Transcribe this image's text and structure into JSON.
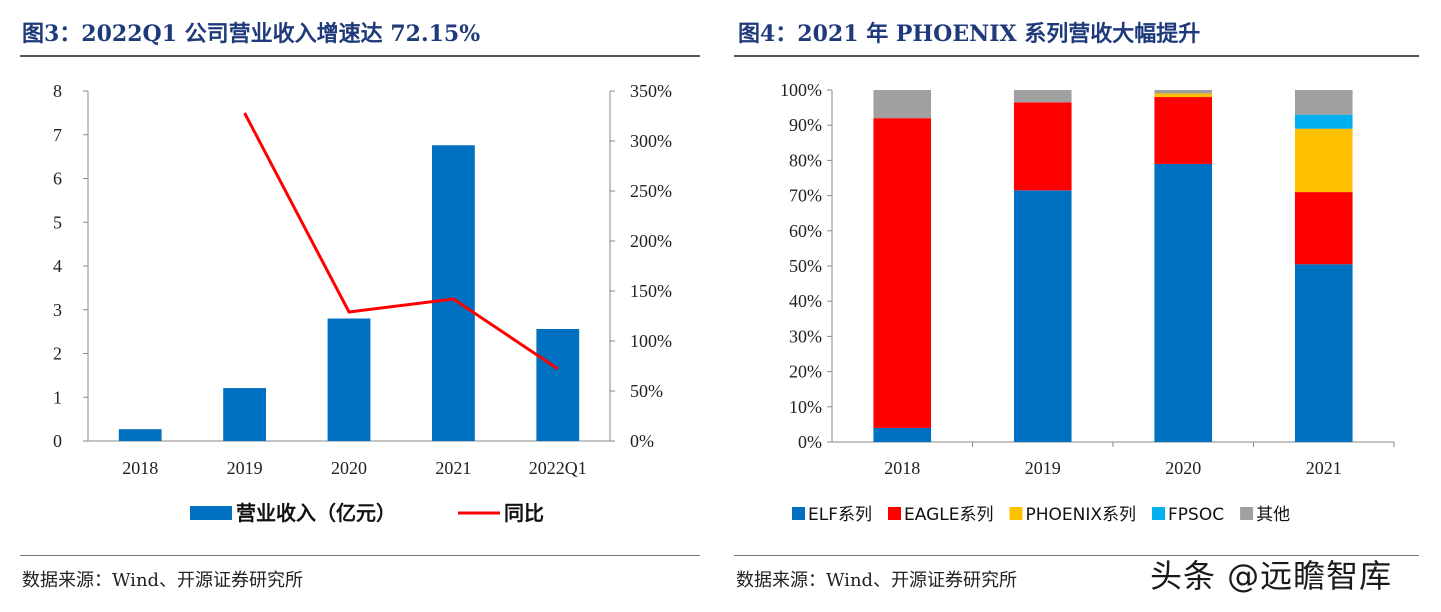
{
  "left": {
    "title": "图3：2022Q1 公司营业收入增速达 72.15%",
    "source": "数据来源：Wind、开源证券研究所",
    "chart_data": {
      "type": "bar",
      "categories": [
        "2018",
        "2019",
        "2020",
        "2021",
        "2022Q1"
      ],
      "series": [
        {
          "name": "营业收入（亿元）",
          "type": "bar",
          "axis": "left",
          "color": "#0070C0",
          "values": [
            0.27,
            1.21,
            2.8,
            6.76,
            2.56
          ]
        },
        {
          "name": "同比",
          "type": "line",
          "axis": "right",
          "color": "#FF0000",
          "values": [
            null,
            328,
            129,
            142,
            72.15
          ]
        }
      ],
      "y_left": {
        "range": [
          0,
          8
        ],
        "ticks": [
          "0",
          "1",
          "2",
          "3",
          "4",
          "5",
          "6",
          "7",
          "8"
        ]
      },
      "y_right": {
        "range": [
          0,
          350
        ],
        "ticks": [
          "0%",
          "50%",
          "100%",
          "150%",
          "200%",
          "250%",
          "300%",
          "350%"
        ]
      },
      "grid": false,
      "legend_position": "bottom"
    }
  },
  "right": {
    "title": "图4：2021 年 PHOENIX 系列营收大幅提升",
    "source": "数据来源：Wind、开源证券研究所",
    "chart_data": {
      "type": "bar",
      "stacked": true,
      "categories": [
        "2018",
        "2019",
        "2020",
        "2021"
      ],
      "series": [
        {
          "name": "ELF系列",
          "color": "#0070C0",
          "values": [
            4,
            71.5,
            79,
            50.5
          ]
        },
        {
          "name": "EAGLE系列",
          "color": "#FF0000",
          "values": [
            88,
            25,
            19,
            20.5
          ]
        },
        {
          "name": "PHOENIX系列",
          "color": "#FFC000",
          "values": [
            0,
            0,
            1,
            18
          ]
        },
        {
          "name": "FPSOC",
          "color": "#00B0F0",
          "values": [
            0,
            0,
            0,
            4
          ]
        },
        {
          "name": "其他",
          "color": "#A0A0A0",
          "values": [
            8,
            3.5,
            1,
            7
          ]
        }
      ],
      "y": {
        "range": [
          0,
          100
        ],
        "ticks": [
          "0%",
          "10%",
          "20%",
          "30%",
          "40%",
          "50%",
          "60%",
          "70%",
          "80%",
          "90%",
          "100%"
        ]
      },
      "grid": false,
      "legend_position": "bottom"
    }
  },
  "watermark": "头条 @远瞻智库"
}
